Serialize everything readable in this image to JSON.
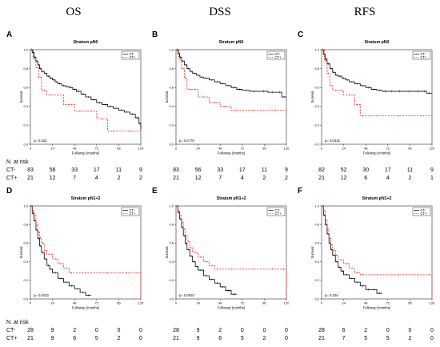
{
  "column_headers": [
    "OS",
    "DSS",
    "RFS"
  ],
  "colors": {
    "ct_minus": "#000000",
    "ct_plus": "#e8322a"
  },
  "chart_data": [
    {
      "type": "line",
      "panel": "A",
      "title": "Stratum pN0",
      "xlabel": "Followup (months)",
      "ylabel": "Survival",
      "xlim": [
        0,
        120
      ],
      "ylim": [
        0,
        1
      ],
      "xticks": [
        "0",
        "24",
        "48",
        "72",
        "96",
        "120"
      ],
      "yticks": [
        "0.0",
        "0.2",
        "0.4",
        "0.6",
        "0.8",
        "1.0"
      ],
      "pvalue": "p= 0.333",
      "legend_position": "top-right",
      "series": [
        {
          "name": "CT-",
          "color": "#000000",
          "dashed": false,
          "x": [
            0,
            2,
            4,
            6,
            8,
            10,
            12,
            15,
            18,
            21,
            24,
            27,
            30,
            34,
            38,
            42,
            46,
            50,
            55,
            60,
            66,
            72,
            78,
            84,
            90,
            96,
            102,
            108,
            114,
            118,
            120
          ],
          "y": [
            1.0,
            0.97,
            0.92,
            0.88,
            0.84,
            0.8,
            0.77,
            0.75,
            0.72,
            0.7,
            0.68,
            0.66,
            0.64,
            0.62,
            0.61,
            0.6,
            0.58,
            0.56,
            0.53,
            0.5,
            0.47,
            0.44,
            0.42,
            0.4,
            0.38,
            0.36,
            0.34,
            0.32,
            0.28,
            0.22,
            0.16
          ]
        },
        {
          "name": "CT+",
          "color": "#e8322a",
          "dashed": true,
          "x": [
            0,
            3,
            6,
            9,
            12,
            18,
            24,
            36,
            48,
            60,
            72,
            84,
            96,
            120
          ],
          "y": [
            1.0,
            0.9,
            0.81,
            0.71,
            0.57,
            0.52,
            0.52,
            0.42,
            0.35,
            0.35,
            0.27,
            0.14,
            0.14,
            0.14
          ]
        }
      ],
      "risk_table": {
        "header": "N. at risk",
        "x": [
          0,
          24,
          48,
          72,
          96,
          120
        ],
        "rows": [
          {
            "label": "CT-",
            "values": [
              "83",
              "56",
              "33",
              "17",
              "11",
              "9"
            ]
          },
          {
            "label": "CT+",
            "values": [
              "21",
              "12",
              "7",
              "4",
              "2",
              "2"
            ]
          }
        ]
      }
    },
    {
      "type": "line",
      "panel": "B",
      "title": "Stratum pN0",
      "xlabel": "Followup (months)",
      "ylabel": "Survival",
      "xlim": [
        0,
        120
      ],
      "ylim": [
        0,
        1
      ],
      "xticks": [
        "0",
        "24",
        "48",
        "72",
        "96",
        "120"
      ],
      "yticks": [
        "0.0",
        "0.2",
        "0.4",
        "0.6",
        "0.8",
        "1.0"
      ],
      "pvalue": "p= 0.0775",
      "legend_position": "top-right",
      "series": [
        {
          "name": "CT-",
          "color": "#000000",
          "dashed": false,
          "x": [
            0,
            2,
            4,
            6,
            9,
            12,
            15,
            18,
            22,
            26,
            30,
            36,
            42,
            48,
            54,
            60,
            66,
            72,
            80,
            90,
            100,
            110,
            115,
            120
          ],
          "y": [
            1.0,
            0.96,
            0.92,
            0.88,
            0.84,
            0.8,
            0.77,
            0.75,
            0.73,
            0.71,
            0.7,
            0.68,
            0.66,
            0.64,
            0.62,
            0.6,
            0.58,
            0.57,
            0.56,
            0.56,
            0.55,
            0.55,
            0.5,
            0.5
          ]
        },
        {
          "name": "CT+",
          "color": "#e8322a",
          "dashed": true,
          "x": [
            0,
            3,
            6,
            9,
            12,
            18,
            24,
            36,
            48,
            60,
            72,
            96,
            120
          ],
          "y": [
            1.0,
            0.9,
            0.8,
            0.7,
            0.58,
            0.58,
            0.5,
            0.44,
            0.4,
            0.36,
            0.36,
            0.36,
            0.36
          ]
        }
      ],
      "risk_table": {
        "header": "",
        "x": [
          0,
          24,
          48,
          72,
          96,
          120
        ],
        "rows": [
          {
            "label": "",
            "values": [
              "83",
              "56",
              "33",
              "17",
              "11",
              "9"
            ]
          },
          {
            "label": "",
            "values": [
              "21",
              "12",
              "7",
              "4",
              "2",
              "2"
            ]
          }
        ]
      }
    },
    {
      "type": "line",
      "panel": "C",
      "title": "Stratum pN0",
      "xlabel": "Followup (months)",
      "ylabel": "Survival",
      "xlim": [
        0,
        120
      ],
      "ylim": [
        0,
        1
      ],
      "xticks": [
        "0",
        "24",
        "48",
        "72",
        "96",
        "120"
      ],
      "yticks": [
        "0.0",
        "0.2",
        "0.4",
        "0.6",
        "0.8",
        "1.0"
      ],
      "pvalue": "p= 0.0316",
      "legend_position": "top-right",
      "series": [
        {
          "name": "CT-",
          "color": "#000000",
          "dashed": false,
          "x": [
            0,
            2,
            4,
            6,
            9,
            12,
            15,
            18,
            22,
            26,
            30,
            36,
            42,
            48,
            54,
            60,
            66,
            72,
            80,
            90,
            100,
            110,
            114,
            120
          ],
          "y": [
            1.0,
            0.95,
            0.9,
            0.85,
            0.8,
            0.76,
            0.73,
            0.72,
            0.7,
            0.68,
            0.66,
            0.64,
            0.62,
            0.6,
            0.58,
            0.57,
            0.56,
            0.56,
            0.56,
            0.56,
            0.56,
            0.56,
            0.54,
            0.54
          ]
        },
        {
          "name": "CT+",
          "color": "#e8322a",
          "dashed": true,
          "x": [
            0,
            3,
            6,
            9,
            12,
            18,
            24,
            36,
            42,
            48,
            72,
            96,
            120
          ],
          "y": [
            1.0,
            0.88,
            0.75,
            0.62,
            0.57,
            0.57,
            0.52,
            0.42,
            0.3,
            0.3,
            0.3,
            0.3,
            0.3
          ]
        }
      ],
      "risk_table": {
        "header": "",
        "x": [
          0,
          24,
          48,
          72,
          96,
          120
        ],
        "rows": [
          {
            "label": "",
            "values": [
              "82",
              "52",
              "30",
              "17",
              "11",
              "9"
            ]
          },
          {
            "label": "",
            "values": [
              "21",
              "12",
              "6",
              "4",
              "2",
              "1"
            ]
          }
        ]
      }
    },
    {
      "type": "line",
      "panel": "D",
      "title": "Stratum pN1+2",
      "xlabel": "Followup (months)",
      "ylabel": "Survival",
      "xlim": [
        0,
        120
      ],
      "ylim": [
        0,
        1
      ],
      "xticks": [
        "0",
        "24",
        "48",
        "72",
        "96",
        "120"
      ],
      "yticks": [
        "0.0",
        "0.2",
        "0.4",
        "0.6",
        "0.8",
        "1.0"
      ],
      "pvalue": "p= 0.0423",
      "legend_position": "top-right",
      "series": [
        {
          "name": "CT-",
          "color": "#000000",
          "dashed": false,
          "x": [
            0,
            2,
            4,
            6,
            8,
            10,
            12,
            15,
            18,
            21,
            24,
            30,
            36,
            42,
            48,
            54,
            60,
            66
          ],
          "y": [
            1.0,
            0.92,
            0.84,
            0.74,
            0.65,
            0.57,
            0.5,
            0.43,
            0.36,
            0.32,
            0.28,
            0.22,
            0.18,
            0.14,
            0.11,
            0.07,
            0.04,
            0.04
          ]
        },
        {
          "name": "CT+",
          "color": "#e8322a",
          "dashed": true,
          "x": [
            0,
            2,
            4,
            6,
            8,
            10,
            12,
            15,
            18,
            24,
            30,
            36,
            42,
            48,
            72,
            96,
            114,
            120
          ],
          "y": [
            1.0,
            0.95,
            0.9,
            0.8,
            0.72,
            0.66,
            0.6,
            0.52,
            0.48,
            0.43,
            0.38,
            0.33,
            0.28,
            0.28,
            0.28,
            0.28,
            0.28,
            0.0
          ]
        }
      ],
      "risk_table": {
        "header": "N. at risk",
        "x": [
          0,
          24,
          48,
          72,
          96,
          120
        ],
        "rows": [
          {
            "label": "CT-",
            "values": [
              "28",
              "9",
              "2",
              "0",
              "0",
              "0"
            ]
          },
          {
            "label": "CT+",
            "values": [
              "21",
              "9",
              "6",
              "5",
              "2",
              "0"
            ]
          }
        ]
      }
    },
    {
      "type": "line",
      "panel": "E",
      "title": "Stratum pN1+2",
      "xlabel": "Followup (months)",
      "ylabel": "Survival",
      "xlim": [
        0,
        120
      ],
      "ylim": [
        0,
        1
      ],
      "xticks": [
        "0",
        "24",
        "48",
        "72",
        "96",
        "120"
      ],
      "yticks": [
        "0.0",
        "0.2",
        "0.4",
        "0.6",
        "0.8",
        "1.0"
      ],
      "pvalue": "p= 0.0915",
      "legend_position": "top-right",
      "series": [
        {
          "name": "CT-",
          "color": "#000000",
          "dashed": false,
          "x": [
            0,
            2,
            4,
            6,
            8,
            10,
            12,
            15,
            18,
            21,
            24,
            30,
            36,
            42,
            48,
            54,
            60,
            66
          ],
          "y": [
            1.0,
            0.93,
            0.86,
            0.77,
            0.68,
            0.6,
            0.53,
            0.46,
            0.4,
            0.35,
            0.31,
            0.25,
            0.21,
            0.17,
            0.13,
            0.09,
            0.05,
            0.05
          ]
        },
        {
          "name": "CT+",
          "color": "#e8322a",
          "dashed": true,
          "x": [
            0,
            2,
            4,
            6,
            8,
            10,
            12,
            15,
            18,
            24,
            30,
            36,
            42,
            48,
            72,
            96,
            114,
            120
          ],
          "y": [
            1.0,
            0.95,
            0.9,
            0.82,
            0.75,
            0.68,
            0.62,
            0.55,
            0.5,
            0.45,
            0.4,
            0.36,
            0.32,
            0.32,
            0.32,
            0.32,
            0.32,
            0.0
          ]
        }
      ],
      "risk_table": {
        "header": "",
        "x": [
          0,
          24,
          48,
          72,
          96,
          120
        ],
        "rows": [
          {
            "label": "",
            "values": [
              "28",
              "9",
              "2",
              "0",
              "0",
              "0"
            ]
          },
          {
            "label": "",
            "values": [
              "21",
              "9",
              "6",
              "5",
              "2",
              "0"
            ]
          }
        ]
      }
    },
    {
      "type": "line",
      "panel": "F",
      "title": "Stratum pN1+2",
      "xlabel": "Followup (months)",
      "ylabel": "Survival",
      "xlim": [
        0,
        120
      ],
      "ylim": [
        0,
        1
      ],
      "xticks": [
        "0",
        "24",
        "48",
        "72",
        "96",
        "120"
      ],
      "yticks": [
        "0.0",
        "0.2",
        "0.4",
        "0.6",
        "0.8",
        "1.0"
      ],
      "pvalue": "p= 0.204",
      "legend_position": "top-right",
      "series": [
        {
          "name": "CT-",
          "color": "#000000",
          "dashed": false,
          "x": [
            0,
            2,
            4,
            6,
            8,
            10,
            12,
            15,
            18,
            21,
            24,
            30,
            36,
            42,
            48,
            54,
            60,
            66
          ],
          "y": [
            1.0,
            0.9,
            0.8,
            0.7,
            0.6,
            0.53,
            0.47,
            0.4,
            0.34,
            0.3,
            0.26,
            0.22,
            0.18,
            0.14,
            0.1,
            0.1,
            0.06,
            0.06
          ]
        },
        {
          "name": "CT+",
          "color": "#e8322a",
          "dashed": true,
          "x": [
            0,
            2,
            4,
            6,
            8,
            10,
            12,
            15,
            18,
            24,
            30,
            36,
            42,
            48,
            72,
            96,
            114,
            120
          ],
          "y": [
            1.0,
            0.95,
            0.85,
            0.75,
            0.65,
            0.58,
            0.52,
            0.47,
            0.42,
            0.38,
            0.33,
            0.28,
            0.26,
            0.26,
            0.26,
            0.26,
            0.26,
            0.0
          ]
        }
      ],
      "risk_table": {
        "header": "",
        "x": [
          0,
          24,
          48,
          72,
          96,
          120
        ],
        "rows": [
          {
            "label": "",
            "values": [
              "28",
              "6",
              "2",
              "0",
              "0",
              "0"
            ]
          },
          {
            "label": "",
            "values": [
              "21",
              "7",
              "5",
              "5",
              "2",
              "0"
            ]
          }
        ]
      }
    }
  ]
}
